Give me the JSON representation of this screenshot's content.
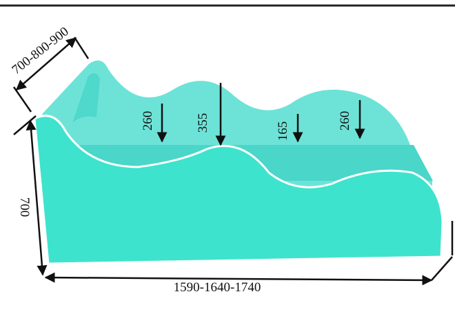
{
  "dimensions": {
    "depth": "700-800-900",
    "height": "700",
    "length": "1590-1640-1740"
  },
  "side_heights": [
    "260",
    "355",
    "165",
    "260"
  ]
}
